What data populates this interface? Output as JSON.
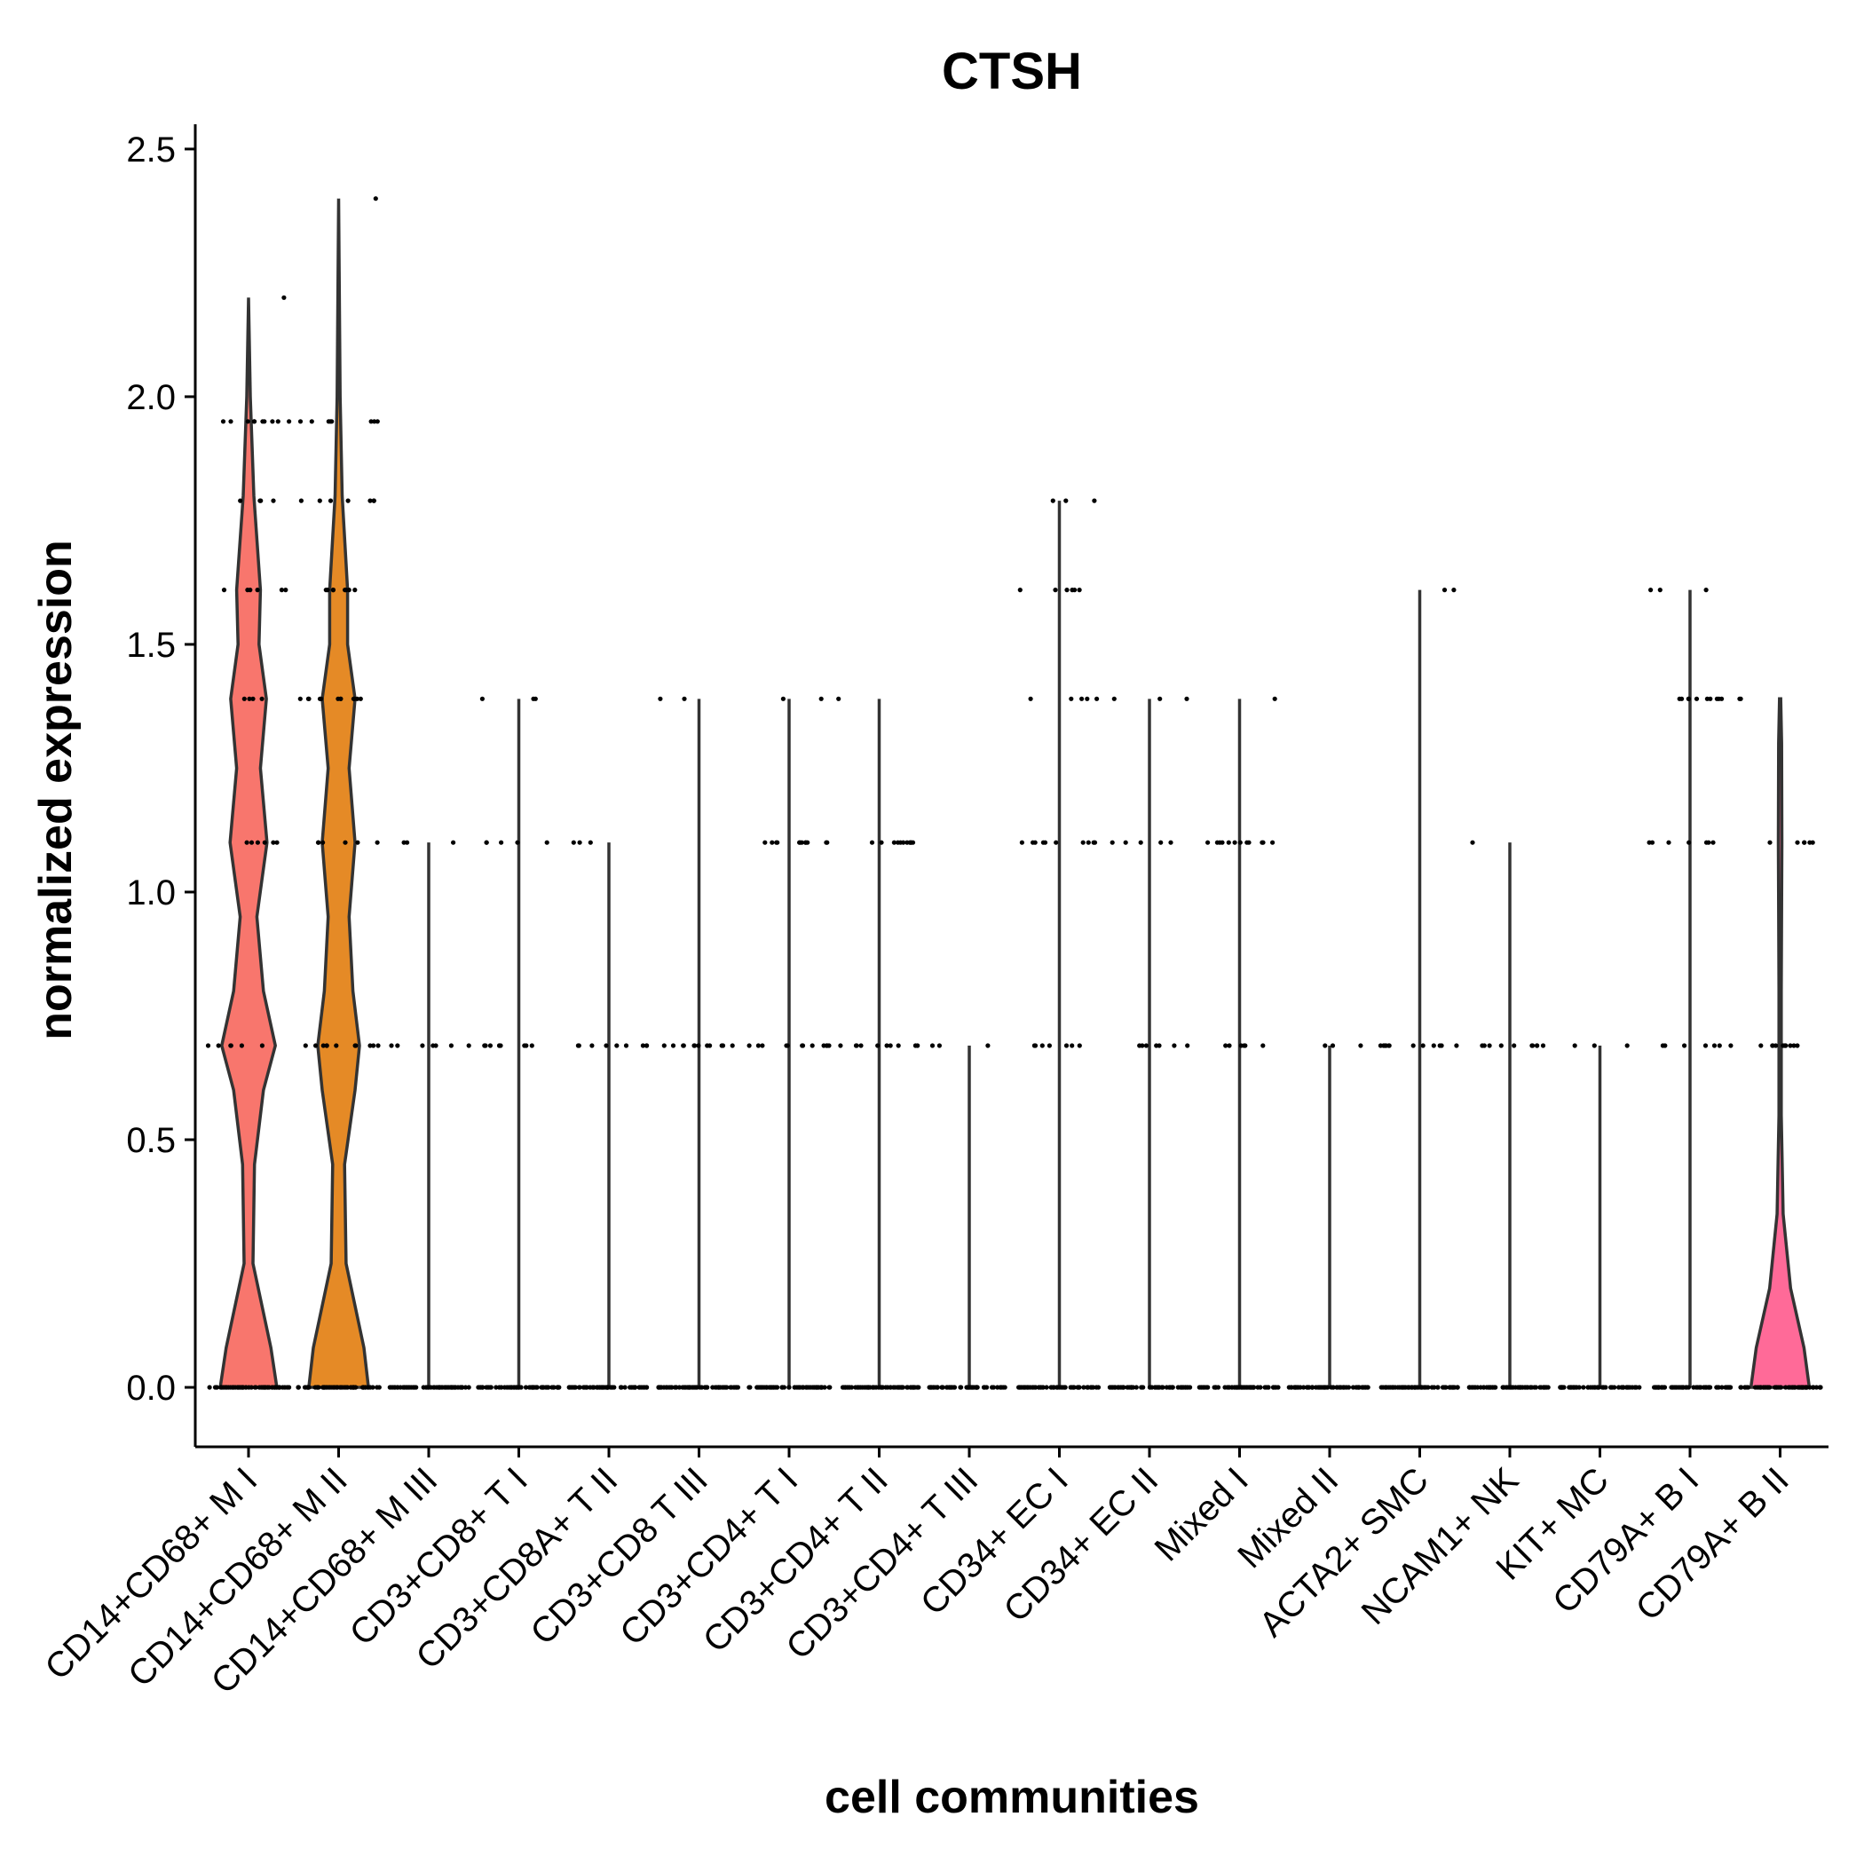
{
  "chart_data": {
    "type": "violin",
    "title": "CTSH",
    "xlabel": "cell communities",
    "ylabel": "normalized expression",
    "ylim": [
      -0.12,
      2.55
    ],
    "yticks": [
      "0.0",
      "0.5",
      "1.0",
      "1.5",
      "2.0",
      "2.5"
    ],
    "ytick_values": [
      0,
      0.5,
      1.0,
      1.5,
      2.0,
      2.5
    ],
    "grid": false,
    "legend": "none",
    "categories": [
      "CD14+CD68+ M I",
      "CD14+CD68+ M II",
      "CD14+CD68+ M III",
      "CD3+CD8+ T I",
      "CD3+CD8A+ T II",
      "CD3+CD8 T III",
      "CD3+CD4+ T I",
      "CD3+CD4+ T II",
      "CD3+CD4+ T III",
      "CD34+ EC I",
      "CD34+ EC II",
      "Mixed I",
      "Mixed II",
      "ACTA2+ SMC",
      "NCAM1+ NK",
      "KIT+ MC",
      "CD79A+ B I",
      "CD79A+ B II"
    ],
    "series": [
      {
        "max": 2.2,
        "color": "#F8766D",
        "levels": [
          0,
          0.69,
          1.1,
          1.39,
          1.61,
          1.79,
          1.95,
          2.2
        ]
      },
      {
        "max": 2.4,
        "color": "#E58A26",
        "levels": [
          0,
          0.69,
          1.1,
          1.39,
          1.61,
          1.79,
          1.95,
          2.4
        ]
      },
      {
        "max": 1.1,
        "color": "#D89000",
        "levels": [
          0,
          0.69,
          1.1
        ]
      },
      {
        "max": 1.39,
        "color": "#C09B00",
        "levels": [
          0,
          0.69,
          1.1,
          1.39
        ]
      },
      {
        "max": 1.1,
        "color": "#A3A500",
        "levels": [
          0,
          0.69,
          1.1
        ]
      },
      {
        "max": 1.39,
        "color": "#7CAE00",
        "levels": [
          0,
          0.69,
          1.39
        ]
      },
      {
        "max": 1.39,
        "color": "#39B600",
        "levels": [
          0,
          0.69,
          1.1,
          1.39
        ]
      },
      {
        "max": 1.39,
        "color": "#00BB4E",
        "levels": [
          0,
          0.69,
          1.1,
          1.39
        ]
      },
      {
        "max": 0.69,
        "color": "#00BF7D",
        "levels": [
          0,
          0.69
        ]
      },
      {
        "max": 1.79,
        "color": "#00C1A3",
        "levels": [
          0,
          0.69,
          1.1,
          1.39,
          1.61,
          1.79
        ]
      },
      {
        "max": 1.39,
        "color": "#00BFC4",
        "levels": [
          0,
          0.69,
          1.1,
          1.39
        ]
      },
      {
        "max": 1.39,
        "color": "#00B8E7",
        "levels": [
          0,
          0.69,
          1.1,
          1.39
        ]
      },
      {
        "max": 0.69,
        "color": "#00A9FF",
        "levels": [
          0,
          0.69
        ]
      },
      {
        "max": 1.61,
        "color": "#619CFF",
        "levels": [
          0,
          0.69,
          1.61
        ]
      },
      {
        "max": 1.1,
        "color": "#9590FF",
        "levels": [
          0,
          0.69,
          1.1
        ]
      },
      {
        "max": 0.69,
        "color": "#E76BF3",
        "levels": [
          0,
          0.69
        ]
      },
      {
        "max": 1.61,
        "color": "#FF62BC",
        "levels": [
          0,
          0.69,
          1.1,
          1.39,
          1.61
        ]
      },
      {
        "max": 1.39,
        "color": "#FF6A98",
        "levels": [
          0,
          0.69,
          1.1,
          1.39
        ]
      }
    ],
    "violin_profiles": {
      "0": [
        [
          0,
          0.95
        ],
        [
          0.08,
          0.75
        ],
        [
          0.25,
          0.15
        ],
        [
          0.45,
          0.2
        ],
        [
          0.6,
          0.5
        ],
        [
          0.69,
          0.9
        ],
        [
          0.8,
          0.5
        ],
        [
          0.95,
          0.28
        ],
        [
          1.1,
          0.62
        ],
        [
          1.25,
          0.4
        ],
        [
          1.39,
          0.6
        ],
        [
          1.5,
          0.35
        ],
        [
          1.61,
          0.4
        ],
        [
          1.8,
          0.18
        ],
        [
          2.0,
          0.06
        ],
        [
          2.2,
          0.0
        ]
      ],
      "1": [
        [
          0,
          1.0
        ],
        [
          0.08,
          0.85
        ],
        [
          0.25,
          0.25
        ],
        [
          0.45,
          0.2
        ],
        [
          0.6,
          0.55
        ],
        [
          0.69,
          0.7
        ],
        [
          0.8,
          0.48
        ],
        [
          0.95,
          0.35
        ],
        [
          1.1,
          0.55
        ],
        [
          1.25,
          0.35
        ],
        [
          1.39,
          0.55
        ],
        [
          1.5,
          0.3
        ],
        [
          1.61,
          0.3
        ],
        [
          1.8,
          0.12
        ],
        [
          2.0,
          0.05
        ],
        [
          2.4,
          0.0
        ]
      ],
      "17": [
        [
          0,
          0.98
        ],
        [
          0.08,
          0.8
        ],
        [
          0.2,
          0.35
        ],
        [
          0.35,
          0.1
        ],
        [
          0.55,
          0.04
        ],
        [
          0.8,
          0.04
        ],
        [
          1.1,
          0.06
        ],
        [
          1.3,
          0.05
        ],
        [
          1.39,
          0.02
        ]
      ]
    }
  }
}
